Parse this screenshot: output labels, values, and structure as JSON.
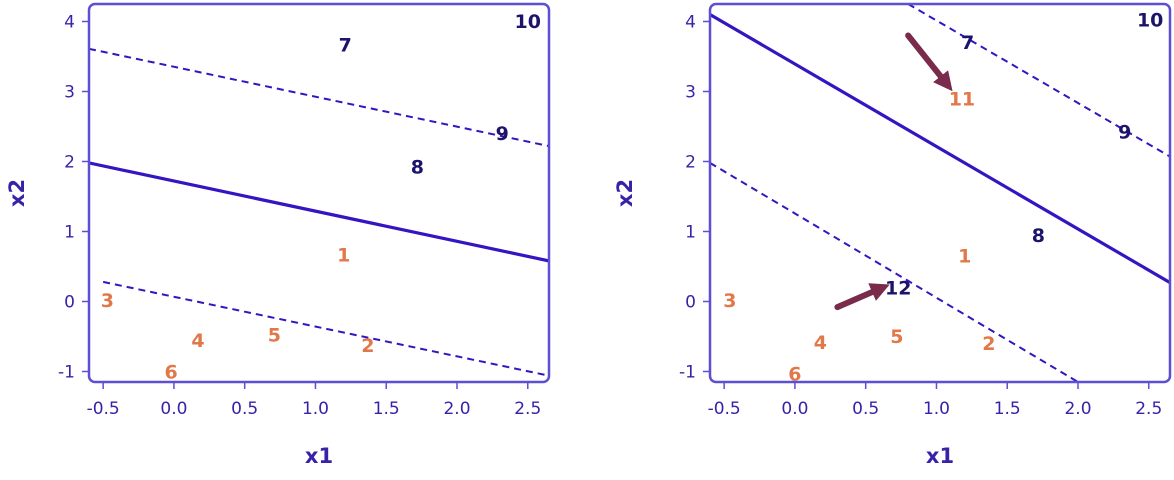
{
  "chart_data": [
    {
      "type": "scatter",
      "xlabel": "x1",
      "ylabel": "x2",
      "xlim": [
        -0.6,
        2.65
      ],
      "ylim": [
        -1.15,
        4.25
      ],
      "xticks": [
        "-0.5",
        "0.0",
        "0.5",
        "1.0",
        "1.5",
        "2.0",
        "2.5"
      ],
      "yticks": [
        "-1",
        "0",
        "1",
        "2",
        "3",
        "4"
      ],
      "points": [
        {
          "label": "1",
          "x": 1.2,
          "y": 0.67,
          "class": "orange"
        },
        {
          "label": "2",
          "x": 1.37,
          "y": -0.62,
          "class": "orange"
        },
        {
          "label": "3",
          "x": -0.47,
          "y": 0.02,
          "class": "orange"
        },
        {
          "label": "4",
          "x": 0.17,
          "y": -0.55,
          "class": "orange"
        },
        {
          "label": "5",
          "x": 0.71,
          "y": -0.47,
          "class": "orange"
        },
        {
          "label": "6",
          "x": -0.02,
          "y": -1.0,
          "class": "orange"
        },
        {
          "label": "7",
          "x": 1.21,
          "y": 3.67,
          "class": "navy"
        },
        {
          "label": "8",
          "x": 1.72,
          "y": 1.93,
          "class": "navy"
        },
        {
          "label": "9",
          "x": 2.32,
          "y": 2.41,
          "class": "navy"
        },
        {
          "label": "10",
          "x": 2.5,
          "y": 4.01,
          "class": "navy"
        }
      ],
      "lines": [
        {
          "kind": "solid",
          "x": [
            -0.6,
            2.65
          ],
          "y": [
            1.98,
            0.58
          ]
        },
        {
          "kind": "dashed",
          "x": [
            -0.6,
            2.65
          ],
          "y": [
            3.61,
            2.22
          ]
        },
        {
          "kind": "dashed",
          "x": [
            -0.5,
            2.65
          ],
          "y": [
            0.28,
            -1.06
          ]
        }
      ],
      "arrows": []
    },
    {
      "type": "scatter",
      "xlabel": "x1",
      "ylabel": "x2",
      "xlim": [
        -0.6,
        2.65
      ],
      "ylim": [
        -1.15,
        4.25
      ],
      "xticks": [
        "-0.5",
        "0.0",
        "0.5",
        "1.0",
        "1.5",
        "2.0",
        "2.5"
      ],
      "yticks": [
        "-1",
        "0",
        "1",
        "2",
        "3",
        "4"
      ],
      "points": [
        {
          "label": "1",
          "x": 1.2,
          "y": 0.66,
          "class": "orange"
        },
        {
          "label": "2",
          "x": 1.37,
          "y": -0.59,
          "class": "orange"
        },
        {
          "label": "3",
          "x": -0.46,
          "y": 0.02,
          "class": "orange"
        },
        {
          "label": "4",
          "x": 0.18,
          "y": -0.58,
          "class": "orange"
        },
        {
          "label": "5",
          "x": 0.72,
          "y": -0.49,
          "class": "orange"
        },
        {
          "label": "6",
          "x": 0.0,
          "y": -1.03,
          "class": "orange"
        },
        {
          "label": "7",
          "x": 1.22,
          "y": 3.71,
          "class": "navy"
        },
        {
          "label": "8",
          "x": 1.72,
          "y": 0.95,
          "class": "navy"
        },
        {
          "label": "9",
          "x": 2.33,
          "y": 2.43,
          "class": "navy"
        },
        {
          "label": "10",
          "x": 2.51,
          "y": 4.03,
          "class": "navy"
        },
        {
          "label": "11",
          "x": 1.18,
          "y": 2.9,
          "class": "orange"
        },
        {
          "label": "12",
          "x": 0.73,
          "y": 0.2,
          "class": "navy"
        }
      ],
      "lines": [
        {
          "kind": "solid",
          "x": [
            -0.6,
            2.65
          ],
          "y": [
            4.1,
            0.27
          ]
        },
        {
          "kind": "dashed",
          "x": [
            0.8,
            2.65
          ],
          "y": [
            4.25,
            2.07
          ]
        },
        {
          "kind": "dashed",
          "x": [
            -0.6,
            2.0
          ],
          "y": [
            1.98,
            -1.15
          ]
        }
      ],
      "arrows": [
        {
          "x": [
            0.3,
            0.62
          ],
          "y": [
            -0.08,
            0.2
          ]
        },
        {
          "x": [
            0.8,
            1.08
          ],
          "y": [
            3.8,
            3.09
          ]
        }
      ]
    }
  ],
  "colors": {
    "frame": "#5c4fd4",
    "decision_line": "#3514c2",
    "tick_text": "#3a22a8",
    "navy_point": "#1c136b",
    "orange_point": "#e0784a",
    "arrow": "#7a2a4a"
  }
}
